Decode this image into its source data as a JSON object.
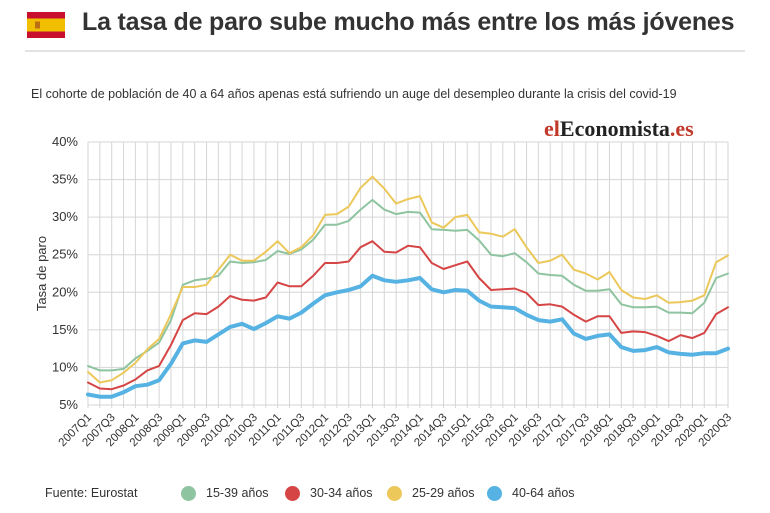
{
  "header": {
    "title": "La tasa de paro sube mucho más entre los más jóvenes",
    "flag_icon": "spain-flag-icon"
  },
  "subtitle": "El cohorte de población de 40 a 64 años apenas está sufriendo un auge del desempleo durante la crisis del covid-19",
  "logo": {
    "part1": "el",
    "part2": "Economista",
    "part3": ".es"
  },
  "source": "Fuente: Eurostat",
  "colors": {
    "s1539": "#8fc4a0",
    "s3034": "#d64545",
    "s2529": "#ecc85a",
    "s4064": "#55b2e2",
    "grid": "#d6d6d6",
    "logo_red": "#c0392b"
  },
  "chart_data": {
    "type": "line",
    "title": "La tasa de paro sube mucho más entre los más jóvenes",
    "xlabel": "",
    "ylabel": "Tasa de paro",
    "ylim": [
      5,
      40
    ],
    "yticks": [
      5,
      10,
      15,
      20,
      25,
      30,
      35,
      40
    ],
    "ytick_labels": [
      "5%",
      "10%",
      "15%",
      "20%",
      "25%",
      "30%",
      "35%",
      "40%"
    ],
    "x": [
      "2007Q1",
      "2007Q2",
      "2007Q3",
      "2007Q4",
      "2008Q1",
      "2008Q2",
      "2008Q3",
      "2008Q4",
      "2009Q1",
      "2009Q2",
      "2009Q3",
      "2009Q4",
      "2010Q1",
      "2010Q2",
      "2010Q3",
      "2010Q4",
      "2011Q1",
      "2011Q2",
      "2011Q3",
      "2011Q4",
      "2012Q1",
      "2012Q2",
      "2012Q3",
      "2012Q4",
      "2013Q1",
      "2013Q2",
      "2013Q3",
      "2013Q4",
      "2014Q1",
      "2014Q2",
      "2014Q3",
      "2014Q4",
      "2015Q1",
      "2015Q2",
      "2015Q3",
      "2015Q4",
      "2016Q1",
      "2016Q2",
      "2016Q3",
      "2016Q4",
      "2017Q1",
      "2017Q2",
      "2017Q3",
      "2017Q4",
      "2018Q1",
      "2018Q2",
      "2018Q3",
      "2018Q4",
      "2019Q1",
      "2019Q2",
      "2019Q3",
      "2019Q4",
      "2020Q1",
      "2020Q2",
      "2020Q3"
    ],
    "tick_labels": [
      "2007Q1",
      "2007Q3",
      "2008Q1",
      "2008Q3",
      "2009Q1",
      "2009Q3",
      "2010Q1",
      "2010Q3",
      "2011Q1",
      "2011Q3",
      "2012Q1",
      "2012Q3",
      "2013Q1",
      "2013Q3",
      "2014Q1",
      "2014Q3",
      "2015Q1",
      "2015Q3",
      "2016Q1",
      "2016Q3",
      "2017Q1",
      "2017Q3",
      "2018Q1",
      "2018Q3",
      "2019Q1",
      "2019Q3",
      "2020Q1",
      "2020Q3"
    ],
    "series": [
      {
        "name": "15-39 años",
        "color": "#8fc4a0",
        "width": 2,
        "values": [
          10.2,
          9.6,
          9.6,
          9.8,
          11.2,
          12.2,
          13.3,
          16.3,
          21.0,
          21.6,
          21.8,
          22.2,
          24.1,
          23.9,
          24.0,
          24.3,
          25.5,
          25.1,
          25.7,
          27.0,
          29.0,
          29.0,
          29.5,
          31.0,
          32.3,
          31.0,
          30.4,
          30.7,
          30.6,
          28.4,
          28.3,
          28.2,
          28.3,
          26.9,
          25.0,
          24.8,
          25.2,
          24.0,
          22.5,
          22.3,
          22.2,
          21.0,
          20.2,
          20.2,
          20.4,
          18.4,
          18.0,
          18.0,
          18.1,
          17.3,
          17.3,
          17.2,
          18.6,
          21.9,
          22.5
        ]
      },
      {
        "name": "30-34 años",
        "color": "#d64545",
        "width": 2,
        "values": [
          8.0,
          7.2,
          7.1,
          7.6,
          8.4,
          9.6,
          10.2,
          13.0,
          16.3,
          17.2,
          17.1,
          18.1,
          19.5,
          19.0,
          18.9,
          19.3,
          21.3,
          20.8,
          20.8,
          22.2,
          23.9,
          23.9,
          24.1,
          26.0,
          26.8,
          25.4,
          25.3,
          26.2,
          26.0,
          23.9,
          23.1,
          23.6,
          24.1,
          21.9,
          20.3,
          20.4,
          20.5,
          19.9,
          18.3,
          18.4,
          18.1,
          17.0,
          16.1,
          16.8,
          16.8,
          14.6,
          14.8,
          14.7,
          14.2,
          13.5,
          14.3,
          13.9,
          14.6,
          17.1,
          18.0
        ]
      },
      {
        "name": "25-29 años",
        "color": "#ecc85a",
        "width": 2,
        "values": [
          9.4,
          8.0,
          8.3,
          9.3,
          10.6,
          12.4,
          13.8,
          17.1,
          20.7,
          20.7,
          21.0,
          23.0,
          25.0,
          24.2,
          24.2,
          25.4,
          26.8,
          25.2,
          26.0,
          27.6,
          30.3,
          30.4,
          31.4,
          33.9,
          35.4,
          33.8,
          31.8,
          32.4,
          32.8,
          29.3,
          28.6,
          30.0,
          30.3,
          28.0,
          27.8,
          27.4,
          28.4,
          26.0,
          23.9,
          24.2,
          25.0,
          23.0,
          22.5,
          21.7,
          22.7,
          20.3,
          19.3,
          19.1,
          19.6,
          18.6,
          18.7,
          18.9,
          19.6,
          24.0,
          24.9
        ]
      },
      {
        "name": "40-64 años",
        "color": "#55b2e2",
        "width": 4,
        "values": [
          6.4,
          6.1,
          6.1,
          6.7,
          7.5,
          7.7,
          8.3,
          10.5,
          13.2,
          13.6,
          13.4,
          14.4,
          15.4,
          15.8,
          15.1,
          15.9,
          16.8,
          16.5,
          17.3,
          18.5,
          19.6,
          20.0,
          20.3,
          20.8,
          22.2,
          21.6,
          21.4,
          21.6,
          21.9,
          20.4,
          20.0,
          20.3,
          20.2,
          18.9,
          18.1,
          18.0,
          17.9,
          17.0,
          16.3,
          16.1,
          16.4,
          14.5,
          13.8,
          14.2,
          14.4,
          12.7,
          12.2,
          12.3,
          12.7,
          12.0,
          11.8,
          11.7,
          11.9,
          11.9,
          12.5
        ]
      }
    ],
    "legend": [
      {
        "label": "15-39 años",
        "color": "#8fc4a0"
      },
      {
        "label": "30-34 años",
        "color": "#d64545"
      },
      {
        "label": "25-29 años",
        "color": "#ecc85a"
      },
      {
        "label": "40-64 años",
        "color": "#55b2e2"
      }
    ],
    "legend_position": "bottom",
    "grid": true
  }
}
